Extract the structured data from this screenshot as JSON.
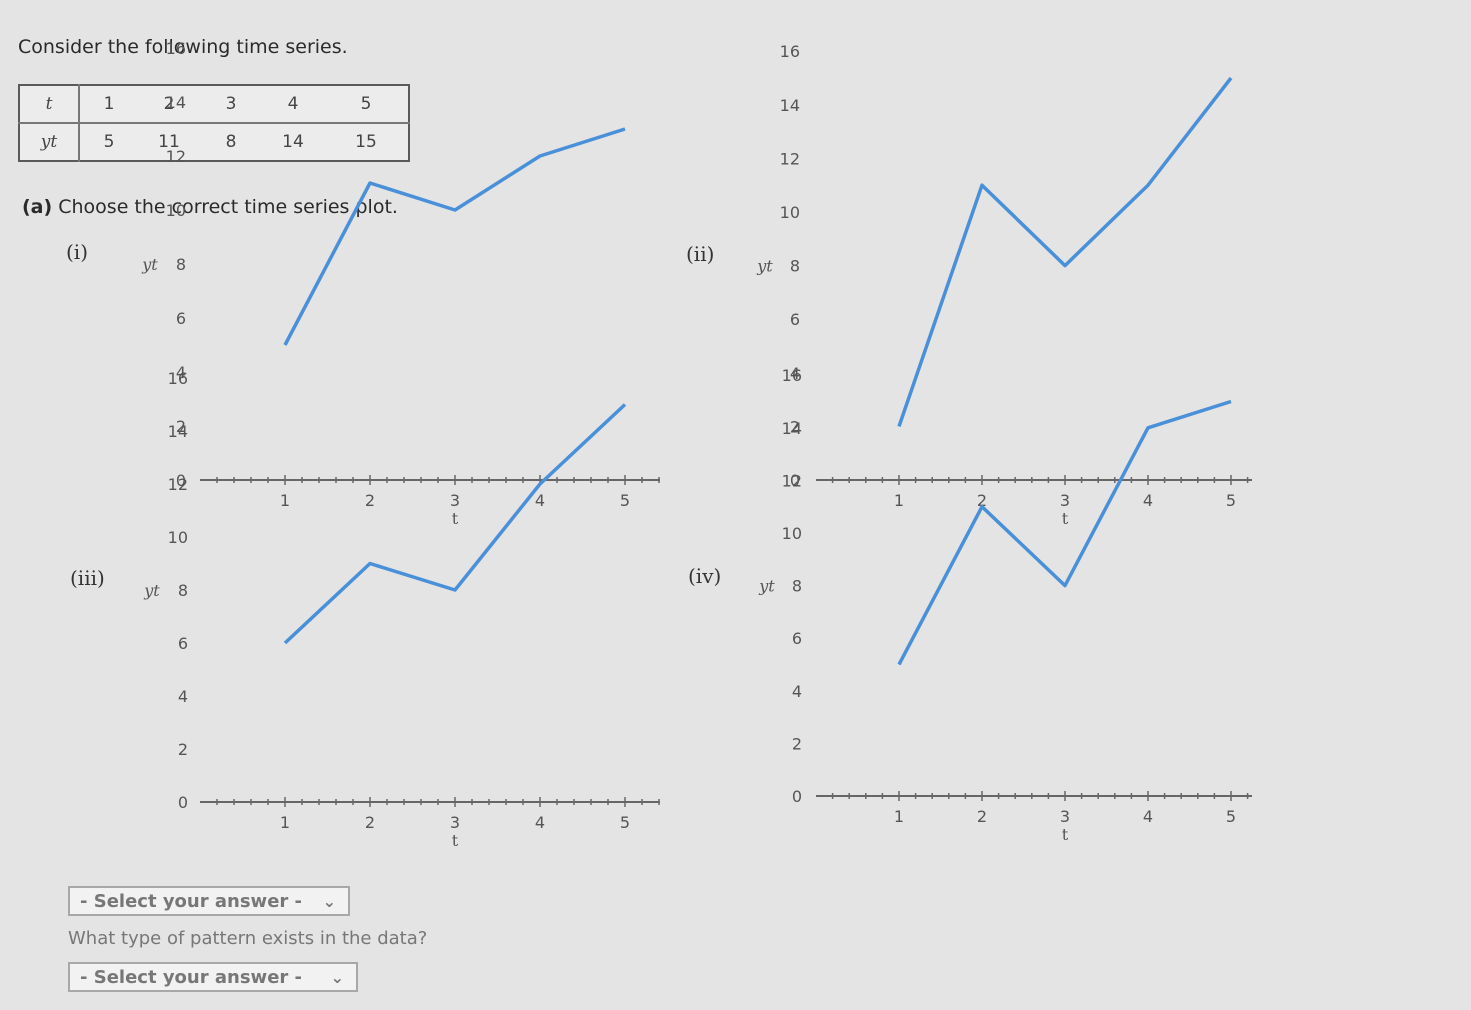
{
  "intro_text": "Consider the following time series.",
  "time_series_table": {
    "row_t_label": "t",
    "row_y_label": "yt",
    "t_values": [
      "1",
      "2",
      "3",
      "4",
      "5"
    ],
    "y_values": [
      "5",
      "11",
      "8",
      "14",
      "15"
    ]
  },
  "part_a": {
    "prefix": "(a)",
    "text": "Choose the correct time series plot."
  },
  "chart_data": [
    {
      "type": "line",
      "panel_label": "(i)",
      "xlabel": "t",
      "ylabel": "yt",
      "xlim": [
        0,
        5.4
      ],
      "ylim": [
        0,
        16
      ],
      "x_ticks": [
        1,
        2,
        3,
        4,
        5
      ],
      "y_ticks": [
        0,
        2,
        4,
        6,
        8,
        10,
        12,
        14,
        16
      ],
      "series": [
        {
          "x": [
            1,
            2,
            3,
            4,
            5
          ],
          "values": [
            5,
            11,
            10,
            12,
            13
          ]
        }
      ],
      "grid": false,
      "line_color": "#4a90d9"
    },
    {
      "type": "line",
      "panel_label": "(ii)",
      "xlabel": "t",
      "ylabel": "yt",
      "xlim": [
        0,
        5.4
      ],
      "ylim": [
        0,
        16
      ],
      "x_ticks": [
        1,
        2,
        3,
        4,
        5
      ],
      "y_ticks": [
        0,
        2,
        4,
        6,
        8,
        10,
        12,
        14,
        16
      ],
      "series": [
        {
          "x": [
            1,
            2,
            3,
            4,
            5
          ],
          "values": [
            2,
            11,
            8,
            11,
            15
          ]
        }
      ],
      "grid": false,
      "line_color": "#4a90d9"
    },
    {
      "type": "line",
      "panel_label": "(iii)",
      "xlabel": "t",
      "ylabel": "yt",
      "xlim": [
        0,
        5.4
      ],
      "ylim": [
        0,
        16
      ],
      "x_ticks": [
        1,
        2,
        3,
        4,
        5
      ],
      "y_ticks": [
        0,
        2,
        4,
        6,
        8,
        10,
        12,
        14,
        16
      ],
      "series": [
        {
          "x": [
            1,
            2,
            3,
            4,
            5
          ],
          "values": [
            6,
            9,
            8,
            12,
            15
          ]
        }
      ],
      "grid": false,
      "line_color": "#4a90d9"
    },
    {
      "type": "line",
      "panel_label": "(iv)",
      "xlabel": "t",
      "ylabel": "yt",
      "xlim": [
        0,
        5.4
      ],
      "ylim": [
        0,
        16
      ],
      "x_ticks": [
        1,
        2,
        3,
        4,
        5
      ],
      "y_ticks": [
        0,
        2,
        4,
        6,
        8,
        10,
        12,
        14,
        16
      ],
      "series": [
        {
          "x": [
            1,
            2,
            3,
            4,
            5
          ],
          "values": [
            5,
            11,
            8,
            14,
            15
          ]
        }
      ],
      "grid": false,
      "line_color": "#4a90d9"
    }
  ],
  "select_plot": {
    "value": "- Select your answer -",
    "chevron_icon": "chevron-down-icon"
  },
  "pattern_question": "What type of pattern exists in the data?",
  "select_pattern": {
    "value": "- Select your answer -",
    "chevron_icon": "chevron-down-icon"
  }
}
